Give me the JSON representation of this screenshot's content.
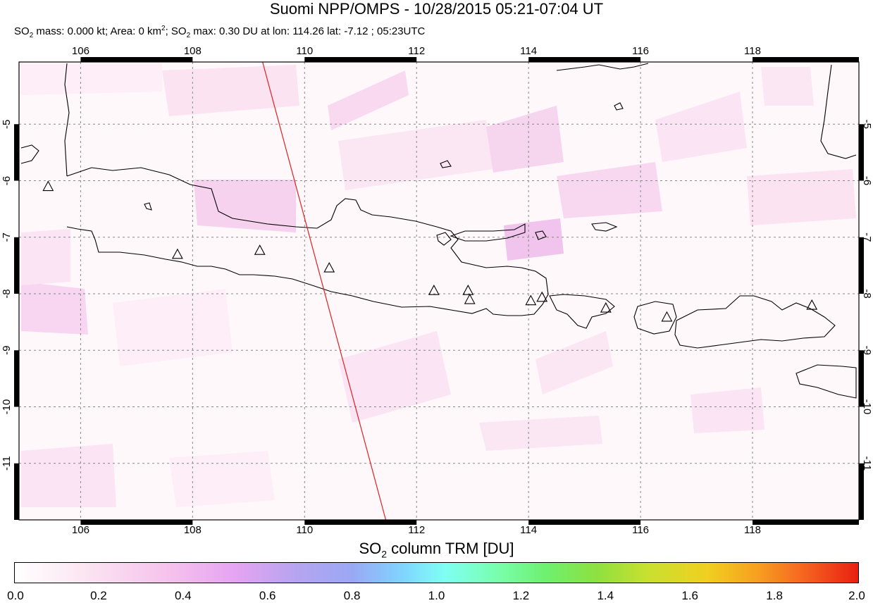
{
  "title": "Suomi NPP/OMPS - 10/28/2015 05:21-07:04 UT",
  "subtitle": {
    "mass_label": "SO",
    "mass_sub": "2",
    "mass_text": " mass: 0.000 kt; Area: 0 km",
    "area_sup": "2",
    "max_prefix": "; SO",
    "max_sub": "2",
    "max_text": " max: 0.30 DU at lon: 114.26 lat: -7.12 ; 05:23UTC"
  },
  "map": {
    "lon_range": [
      104.9,
      119.9
    ],
    "lat_range": [
      -12.0,
      -3.9
    ],
    "lon_ticks": [
      "106",
      "108",
      "110",
      "112",
      "114",
      "116",
      "118"
    ],
    "lat_ticks": [
      "-5",
      "-6",
      "-7",
      "-8",
      "-9",
      "-10",
      "-11"
    ],
    "gridlines": true,
    "orbit_track_color": "#e02020",
    "orbit_track": [
      [
        109.25,
        -3.9
      ],
      [
        111.45,
        -12.0
      ]
    ],
    "volcanoes": [
      [
        105.42,
        -6.1
      ],
      [
        107.73,
        -7.3
      ],
      [
        109.2,
        -7.23
      ],
      [
        110.44,
        -7.54
      ],
      [
        112.31,
        -7.94
      ],
      [
        112.92,
        -7.94
      ],
      [
        112.95,
        -8.1
      ],
      [
        114.04,
        -8.12
      ],
      [
        114.24,
        -8.06
      ],
      [
        115.38,
        -8.25
      ],
      [
        116.47,
        -8.41
      ],
      [
        119.06,
        -8.2
      ]
    ]
  },
  "colorbar": {
    "title_prefix": "SO",
    "title_sub": "2",
    "title_suffix": " column TRM [DU]",
    "labels": [
      "0.0",
      "0.2",
      "0.4",
      "0.6",
      "0.8",
      "1.0",
      "1.2",
      "1.4",
      "1.6",
      "1.8",
      "2.0"
    ]
  }
}
